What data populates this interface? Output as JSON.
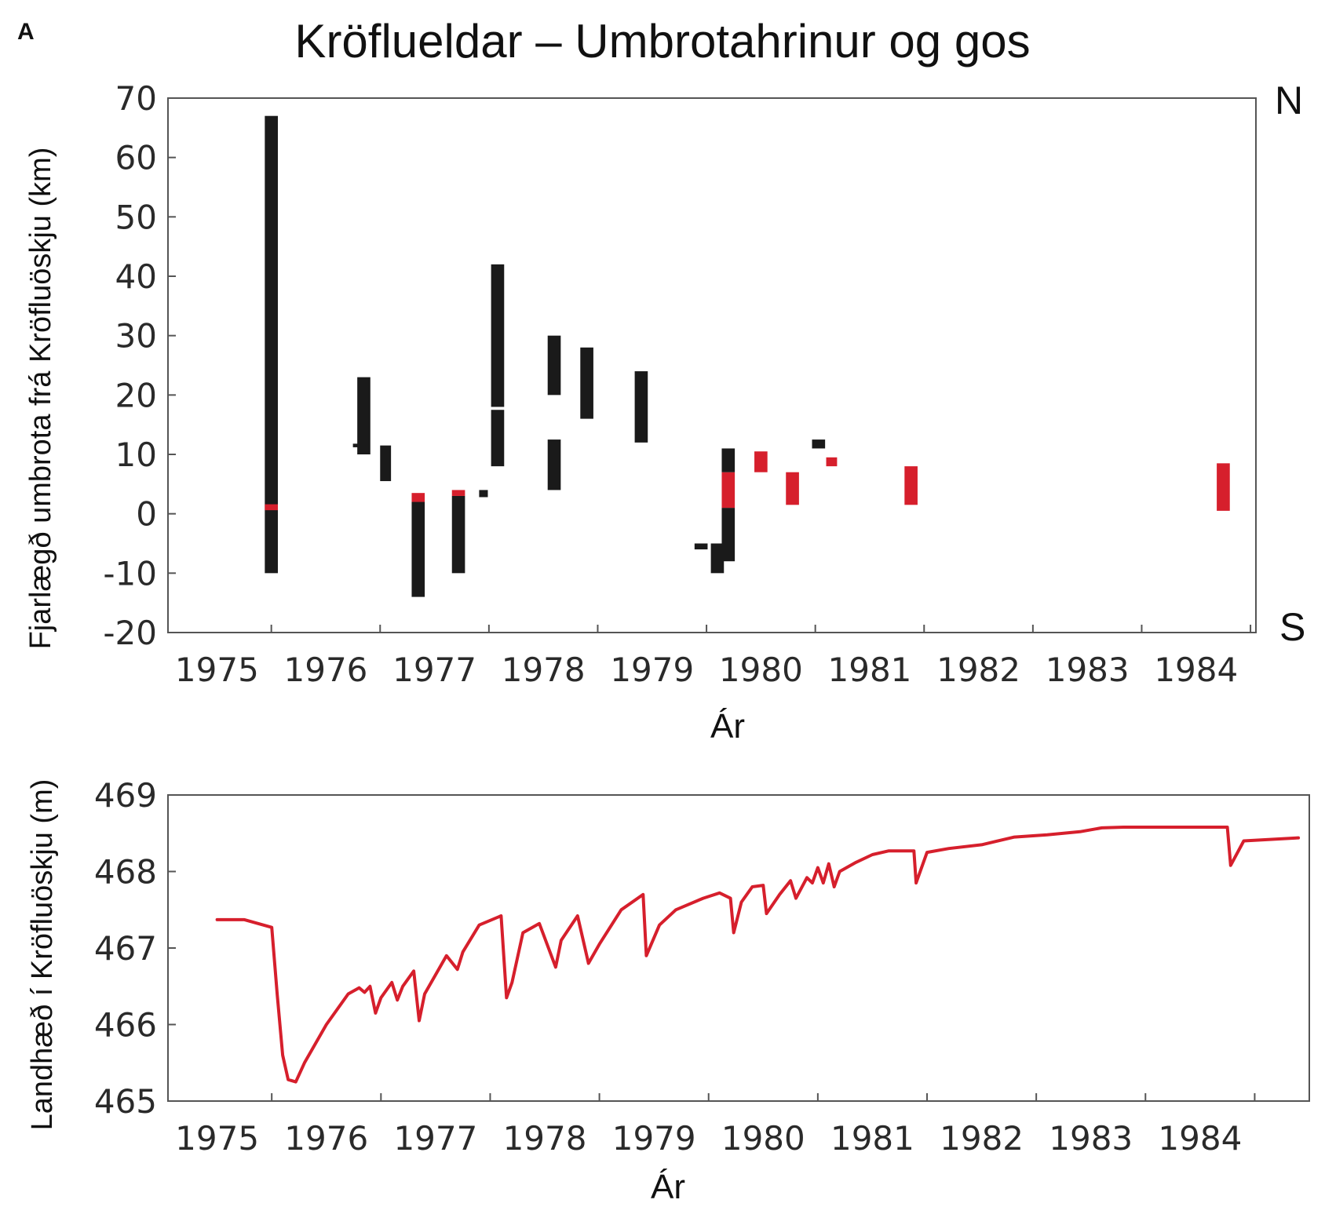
{
  "figure": {
    "panel_label": "A",
    "title": "Kröflueldar – Umbrotahrinur og gos"
  },
  "colors": {
    "intrusion": "#1a1a1a",
    "eruption": "#d61f2c",
    "axis": "#555555",
    "text": "#2a2a2a"
  },
  "chart_data": [
    {
      "type": "bar",
      "subtype": "floating-range",
      "xlabel": "Ár",
      "ylabel": "Fjarlægð umbrota frá Kröfluöskju (km)",
      "ylim": [
        -20,
        70
      ],
      "xlim": [
        1974.55,
        1984.55
      ],
      "y_ticks": [
        70,
        60,
        50,
        40,
        30,
        20,
        10,
        0,
        -10,
        -20
      ],
      "x_ticks": [
        "1975",
        "1976",
        "1977",
        "1978",
        "1979",
        "1980",
        "1981",
        "1982",
        "1983",
        "1984"
      ],
      "annotations": {
        "north": "N",
        "south": "S"
      },
      "grid": false,
      "segments": [
        {
          "x": 1975.5,
          "width": 0.12,
          "y0": -10,
          "y1": 67,
          "kind": "intrusion"
        },
        {
          "x": 1975.5,
          "width": 0.12,
          "y0": 0.6,
          "y1": 1.6,
          "kind": "eruption"
        },
        {
          "x": 1976.3,
          "width": 0.1,
          "y0": 11.2,
          "y1": 11.8,
          "kind": "intrusion"
        },
        {
          "x": 1976.35,
          "width": 0.12,
          "y0": 10,
          "y1": 23,
          "kind": "intrusion"
        },
        {
          "x": 1976.55,
          "width": 0.1,
          "y0": 5.5,
          "y1": 11.5,
          "kind": "intrusion"
        },
        {
          "x": 1976.85,
          "width": 0.12,
          "y0": -14,
          "y1": 2,
          "kind": "intrusion"
        },
        {
          "x": 1976.85,
          "width": 0.12,
          "y0": 2,
          "y1": 3.5,
          "kind": "eruption"
        },
        {
          "x": 1977.22,
          "width": 0.12,
          "y0": -10,
          "y1": 3,
          "kind": "intrusion"
        },
        {
          "x": 1977.22,
          "width": 0.12,
          "y0": 3,
          "y1": 4,
          "kind": "eruption"
        },
        {
          "x": 1977.45,
          "width": 0.08,
          "y0": 2.8,
          "y1": 4,
          "kind": "intrusion"
        },
        {
          "x": 1977.58,
          "width": 0.12,
          "y0": 18,
          "y1": 42,
          "kind": "intrusion"
        },
        {
          "x": 1977.58,
          "width": 0.12,
          "y0": 8,
          "y1": 17.5,
          "kind": "intrusion"
        },
        {
          "x": 1978.1,
          "width": 0.12,
          "y0": 20,
          "y1": 30,
          "kind": "intrusion"
        },
        {
          "x": 1978.1,
          "width": 0.12,
          "y0": 4,
          "y1": 12.5,
          "kind": "intrusion"
        },
        {
          "x": 1978.4,
          "width": 0.12,
          "y0": 16,
          "y1": 28,
          "kind": "intrusion"
        },
        {
          "x": 1978.9,
          "width": 0.12,
          "y0": 12,
          "y1": 24,
          "kind": "intrusion"
        },
        {
          "x": 1979.45,
          "width": 0.12,
          "y0": -6,
          "y1": -5,
          "kind": "intrusion"
        },
        {
          "x": 1979.6,
          "width": 0.12,
          "y0": -10,
          "y1": -5,
          "kind": "intrusion"
        },
        {
          "x": 1979.7,
          "width": 0.12,
          "y0": -8,
          "y1": 1,
          "kind": "intrusion"
        },
        {
          "x": 1979.7,
          "width": 0.12,
          "y0": 1,
          "y1": 7,
          "kind": "eruption"
        },
        {
          "x": 1979.7,
          "width": 0.12,
          "y0": 7,
          "y1": 11,
          "kind": "intrusion"
        },
        {
          "x": 1980.0,
          "width": 0.12,
          "y0": 7,
          "y1": 10.5,
          "kind": "eruption"
        },
        {
          "x": 1980.29,
          "width": 0.12,
          "y0": 1.5,
          "y1": 7,
          "kind": "eruption"
        },
        {
          "x": 1980.53,
          "width": 0.12,
          "y0": 11,
          "y1": 12.5,
          "kind": "intrusion"
        },
        {
          "x": 1980.65,
          "width": 0.1,
          "y0": 8,
          "y1": 9.5,
          "kind": "eruption"
        },
        {
          "x": 1981.38,
          "width": 0.12,
          "y0": 1.5,
          "y1": 8,
          "kind": "eruption"
        },
        {
          "x": 1984.25,
          "width": 0.12,
          "y0": 0.5,
          "y1": 8.5,
          "kind": "eruption"
        }
      ]
    },
    {
      "type": "line",
      "xlabel": "Ár",
      "ylabel": "Landhæð í Kröfluöskju (m)",
      "ylim": [
        465,
        469
      ],
      "xlim": [
        1974.55,
        1985.0
      ],
      "y_ticks": [
        469,
        468,
        467,
        466,
        465
      ],
      "x_ticks": [
        "1975",
        "1976",
        "1977",
        "1978",
        "1979",
        "1980",
        "1981",
        "1982",
        "1983",
        "1984"
      ],
      "grid": false,
      "series": [
        {
          "color": "#d61f2c",
          "x": [
            1975.0,
            1975.25,
            1975.5,
            1975.55,
            1975.6,
            1975.65,
            1975.72,
            1975.8,
            1976.0,
            1976.2,
            1976.3,
            1976.35,
            1976.4,
            1976.45,
            1976.5,
            1976.6,
            1976.65,
            1976.7,
            1976.8,
            1976.85,
            1976.9,
            1977.1,
            1977.2,
            1977.25,
            1977.4,
            1977.6,
            1977.65,
            1977.7,
            1977.8,
            1977.95,
            1978.1,
            1978.15,
            1978.3,
            1978.4,
            1978.5,
            1978.7,
            1978.9,
            1978.93,
            1979.05,
            1979.2,
            1979.45,
            1979.6,
            1979.7,
            1979.73,
            1979.8,
            1979.9,
            1980.0,
            1980.03,
            1980.15,
            1980.25,
            1980.3,
            1980.4,
            1980.45,
            1980.5,
            1980.55,
            1980.6,
            1980.65,
            1980.7,
            1980.85,
            1981.0,
            1981.15,
            1981.38,
            1981.4,
            1981.5,
            1981.7,
            1982.0,
            1982.3,
            1982.6,
            1982.9,
            1983.1,
            1983.3,
            1983.6,
            1984.0,
            1984.25,
            1984.28,
            1984.4,
            1984.9
          ],
          "y": [
            467.37,
            467.37,
            467.27,
            466.4,
            465.6,
            465.28,
            465.25,
            465.5,
            466.0,
            466.4,
            466.48,
            466.42,
            466.5,
            466.15,
            466.35,
            466.55,
            466.32,
            466.5,
            466.7,
            466.05,
            466.4,
            466.9,
            466.72,
            466.95,
            467.3,
            467.42,
            466.35,
            466.55,
            467.2,
            467.32,
            466.75,
            467.1,
            467.42,
            466.8,
            467.05,
            467.5,
            467.7,
            466.9,
            467.3,
            467.5,
            467.65,
            467.72,
            467.65,
            467.2,
            467.6,
            467.8,
            467.82,
            467.45,
            467.7,
            467.88,
            467.65,
            467.92,
            467.85,
            468.05,
            467.85,
            468.1,
            467.8,
            468.0,
            468.12,
            468.22,
            468.27,
            468.27,
            467.85,
            468.25,
            468.3,
            468.35,
            468.45,
            468.48,
            468.52,
            468.57,
            468.58,
            468.58,
            468.58,
            468.58,
            468.08,
            468.4,
            468.44
          ]
        }
      ]
    }
  ]
}
